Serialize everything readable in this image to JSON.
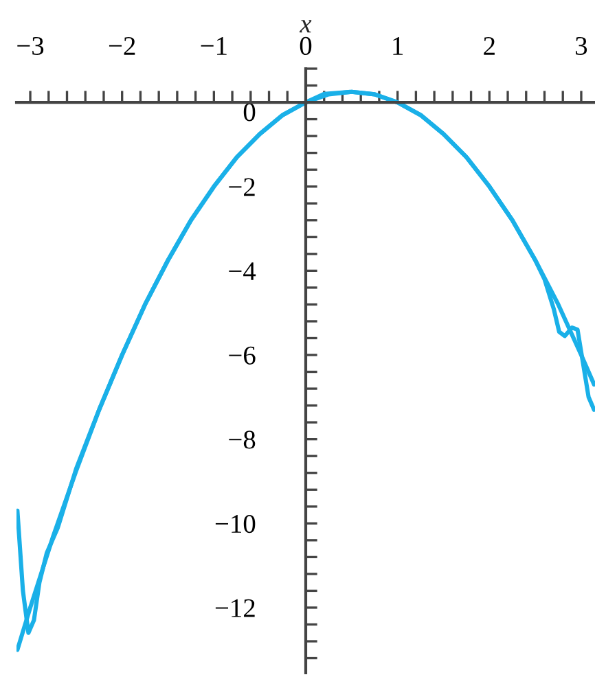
{
  "chart_data": {
    "type": "line",
    "xlabel": "x",
    "xlim": [
      -3.15,
      3.15
    ],
    "ylim": [
      -13.55,
      0.8
    ],
    "xticks": [
      {
        "value": -3,
        "label": "−3"
      },
      {
        "value": -2.8,
        "label": null
      },
      {
        "value": -2.6,
        "label": null
      },
      {
        "value": -2.4,
        "label": null
      },
      {
        "value": -2.2,
        "label": null
      },
      {
        "value": -2,
        "label": "−2"
      },
      {
        "value": -1.8,
        "label": null
      },
      {
        "value": -1.6,
        "label": null
      },
      {
        "value": -1.4,
        "label": null
      },
      {
        "value": -1.2,
        "label": null
      },
      {
        "value": -1,
        "label": "−1"
      },
      {
        "value": -0.8,
        "label": null
      },
      {
        "value": -0.6,
        "label": null
      },
      {
        "value": -0.4,
        "label": null
      },
      {
        "value": -0.2,
        "label": null
      },
      {
        "value": 0,
        "label": "0"
      },
      {
        "value": 0.2,
        "label": null
      },
      {
        "value": 0.4,
        "label": null
      },
      {
        "value": 0.6,
        "label": null
      },
      {
        "value": 0.8,
        "label": null
      },
      {
        "value": 1,
        "label": "1"
      },
      {
        "value": 1.2,
        "label": null
      },
      {
        "value": 1.4,
        "label": null
      },
      {
        "value": 1.6,
        "label": null
      },
      {
        "value": 1.8,
        "label": null
      },
      {
        "value": 2,
        "label": "2"
      },
      {
        "value": 2.2,
        "label": null
      },
      {
        "value": 2.4,
        "label": null
      },
      {
        "value": 2.6,
        "label": null
      },
      {
        "value": 2.8,
        "label": null
      },
      {
        "value": 3,
        "label": "3"
      }
    ],
    "yticks": [
      {
        "value": 0.8,
        "label": null
      },
      {
        "value": 0.4,
        "label": null
      },
      {
        "value": 0,
        "label": "0"
      },
      {
        "value": -0.4,
        "label": null
      },
      {
        "value": -0.8,
        "label": null
      },
      {
        "value": -1.2,
        "label": null
      },
      {
        "value": -1.6,
        "label": null
      },
      {
        "value": -2,
        "label": "−2"
      },
      {
        "value": -2.4,
        "label": null
      },
      {
        "value": -2.8,
        "label": null
      },
      {
        "value": -3.2,
        "label": null
      },
      {
        "value": -3.6,
        "label": null
      },
      {
        "value": -4,
        "label": "−4"
      },
      {
        "value": -4.4,
        "label": null
      },
      {
        "value": -4.8,
        "label": null
      },
      {
        "value": -5.2,
        "label": null
      },
      {
        "value": -5.6,
        "label": null
      },
      {
        "value": -6,
        "label": "−6"
      },
      {
        "value": -6.4,
        "label": null
      },
      {
        "value": -6.8,
        "label": null
      },
      {
        "value": -7.2,
        "label": null
      },
      {
        "value": -7.6,
        "label": null
      },
      {
        "value": -8,
        "label": "−8"
      },
      {
        "value": -8.4,
        "label": null
      },
      {
        "value": -8.8,
        "label": null
      },
      {
        "value": -9.2,
        "label": null
      },
      {
        "value": -9.6,
        "label": null
      },
      {
        "value": -10,
        "label": "−10"
      },
      {
        "value": -10.4,
        "label": null
      },
      {
        "value": -10.8,
        "label": null
      },
      {
        "value": -11.2,
        "label": null
      },
      {
        "value": -11.6,
        "label": null
      },
      {
        "value": -12,
        "label": "−12"
      },
      {
        "value": -12.4,
        "label": null
      },
      {
        "value": -12.8,
        "label": null
      },
      {
        "value": -13.2,
        "label": null
      }
    ],
    "series": [
      {
        "color": "#1ab0e8",
        "x": [
          -3.14,
          -3.0,
          -2.75,
          -2.5,
          -2.25,
          -2.0,
          -1.75,
          -1.5,
          -1.25,
          -1.0,
          -0.75,
          -0.5,
          -0.25,
          0,
          0.25,
          0.5,
          0.75,
          1.0,
          1.25,
          1.5,
          1.75,
          2.0,
          2.25,
          2.5,
          2.75,
          3.0,
          3.14
        ],
        "values": [
          -13.0,
          -12.0,
          -10.3,
          -8.75,
          -7.3,
          -6.0,
          -4.8,
          -3.75,
          -2.8,
          -2.0,
          -1.3,
          -0.75,
          -0.3,
          0,
          0.19,
          0.25,
          0.19,
          0,
          -0.3,
          -0.75,
          -1.3,
          -2.0,
          -2.8,
          -3.75,
          -4.8,
          -6.0,
          -6.7
        ]
      },
      {
        "color": "#1ab0e8",
        "x": [
          -3.14,
          -3.08,
          -3.02,
          -2.96,
          -2.9,
          -2.82,
          -2.7,
          -2.5,
          -2.25,
          -2.0,
          -1.75,
          -1.5,
          -1.25,
          -1.0,
          -0.75,
          -0.5,
          -0.25,
          0,
          0.2,
          0.5,
          0.75,
          1.0,
          1.25,
          1.5,
          1.75,
          2.0,
          2.25,
          2.5,
          2.6,
          2.7,
          2.76,
          2.82,
          2.9,
          2.96,
          3.02,
          3.08,
          3.14
        ],
        "values": [
          -9.7,
          -11.6,
          -12.6,
          -12.3,
          -11.4,
          -10.7,
          -10.1,
          -8.7,
          -7.3,
          -6.0,
          -4.8,
          -3.75,
          -2.8,
          -2.0,
          -1.3,
          -0.75,
          -0.3,
          0,
          0.2,
          0.25,
          0.19,
          0,
          -0.3,
          -0.75,
          -1.3,
          -2.0,
          -2.8,
          -3.75,
          -4.2,
          -4.9,
          -5.45,
          -5.55,
          -5.35,
          -5.4,
          -6.2,
          -7.0,
          -7.3
        ]
      }
    ]
  }
}
